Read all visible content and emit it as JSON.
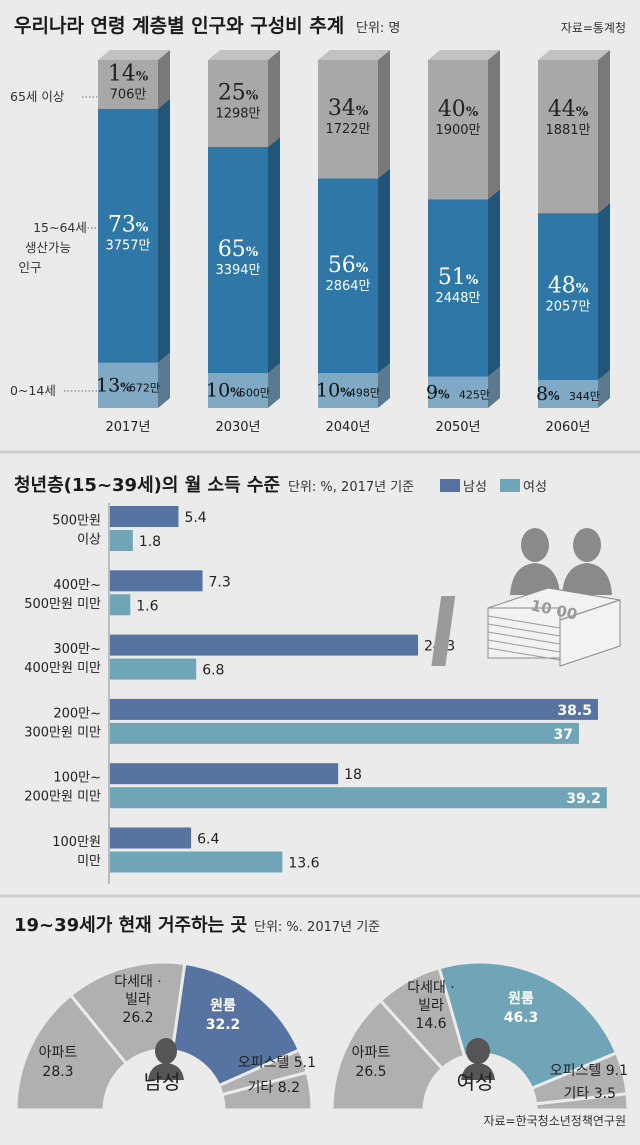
{
  "population": {
    "title": "우리나라 연령 계층별 인구와 구성비 추계",
    "unit": "단위: 명",
    "source": "자료=통계청",
    "row_labels": {
      "old": "65세 이상",
      "working_1": "15~64세",
      "working_2": "생산가능",
      "working_3": "인구",
      "young": "0~14세"
    },
    "colors": {
      "old": "#a8a8a8",
      "working": "#2f77a7",
      "young": "#7fa9c4"
    }
  },
  "income": {
    "title": "청년층(15~39세)의 월 소득 수준",
    "unit": "단위: %, 2017년 기준",
    "legend_male": "남성",
    "legend_female": "여성",
    "colors": {
      "male": "#5773a2",
      "female": "#6fa5b6"
    }
  },
  "housing": {
    "title": "19~39세가 현재 거주하는 곳",
    "unit": "단위: %. 2017년 기준",
    "source": "자료=한국청소년정책연구원",
    "male_label": "남성",
    "female_label": "여성",
    "colors": {
      "gray": "#b0b0b0",
      "male_accent": "#5773a2",
      "female_accent": "#6fa5b6"
    }
  },
  "chart_data": [
    {
      "type": "bar",
      "stacked": true,
      "title": "우리나라 연령 계층별 인구와 구성비 추계",
      "categories": [
        "2017년",
        "2030년",
        "2040년",
        "2050년",
        "2060년"
      ],
      "series": [
        {
          "name": "0~14세",
          "pct": [
            13,
            10,
            10,
            9,
            8
          ],
          "count": [
            "672만",
            "500만",
            "498만",
            "425만",
            "344만"
          ]
        },
        {
          "name": "15~64세 생산가능 인구",
          "pct": [
            73,
            65,
            56,
            51,
            48
          ],
          "count": [
            "3757만",
            "3394만",
            "2864만",
            "2448만",
            "2057만"
          ]
        },
        {
          "name": "65세 이상",
          "pct": [
            14,
            25,
            34,
            40,
            44
          ],
          "count": [
            "706만",
            "1298만",
            "1722만",
            "1900만",
            "1881만"
          ]
        }
      ]
    },
    {
      "type": "bar",
      "orientation": "horizontal",
      "title": "청년층(15~39세)의 월 소득 수준",
      "categories": [
        [
          "500만원",
          "이상"
        ],
        [
          "400만~",
          "500만원 미만"
        ],
        [
          "300만~",
          "400만원 미만"
        ],
        [
          "200만~",
          "300만원 미만"
        ],
        [
          "100만~",
          "200만원 미만"
        ],
        [
          "100만원",
          "미만"
        ]
      ],
      "xlim": [
        0,
        40
      ],
      "series": [
        {
          "name": "남성",
          "values": [
            5.4,
            7.3,
            24.3,
            38.5,
            18,
            6.4
          ],
          "labels": [
            "5.4",
            "7.3",
            "24.3",
            "38.5",
            "18",
            "6.4"
          ]
        },
        {
          "name": "여성",
          "values": [
            1.8,
            1.6,
            6.8,
            37,
            39.2,
            13.6
          ],
          "labels": [
            "1.8",
            "1.6",
            "6.8",
            "37",
            "39.2",
            "13.6"
          ]
        }
      ]
    },
    {
      "type": "pie",
      "half": true,
      "title": "남성",
      "labels": [
        "아파트",
        "다세대 · 빌라",
        "원룸",
        "오피스텔",
        "기타"
      ],
      "values": [
        28.3,
        26.2,
        32.2,
        5.1,
        8.2
      ]
    },
    {
      "type": "pie",
      "half": true,
      "title": "여성",
      "labels": [
        "아파트",
        "다세대 · 빌라",
        "원룸",
        "오피스텔",
        "기타"
      ],
      "values": [
        26.5,
        14.6,
        46.3,
        9.1,
        3.5
      ]
    }
  ]
}
